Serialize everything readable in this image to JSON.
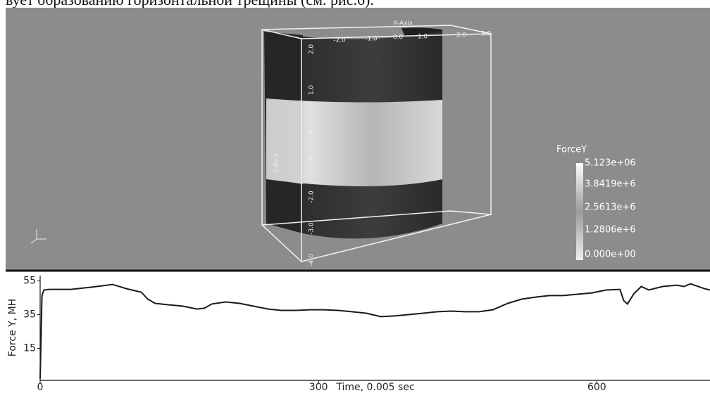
{
  "text": "вует образованию горизонтальной трещины (см. рис.6).",
  "visualization": {
    "x_axis": {
      "title": "X-Axis",
      "ticks": [
        "-2.0",
        "-1.0",
        "0.0",
        "1.0",
        "2.0",
        "3.0"
      ]
    },
    "z_axis": {
      "title": "Z-Axis",
      "ticks": [
        "2.0",
        "1.0",
        "0.0",
        "-1.0",
        "-2.0",
        "-3.0",
        "-4.0"
      ]
    },
    "colorbar": {
      "title": "ForceY",
      "labels": [
        "5.123e+06",
        "3.8419e+6",
        "2.5613e+6",
        "1.2806e+6",
        "0.000e+00"
      ]
    }
  },
  "chart_data": {
    "type": "line",
    "xlabel": "Time, 0.005 sec",
    "ylabel": "Force Y, MH",
    "x": [
      0,
      2,
      4,
      10,
      33,
      55,
      78,
      93,
      109,
      116,
      124,
      139,
      154,
      169,
      177,
      185,
      200,
      215,
      230,
      246,
      260,
      276,
      291,
      306,
      321,
      336,
      352,
      367,
      382,
      397,
      412,
      428,
      443,
      458,
      473,
      488,
      504,
      519,
      534,
      549,
      564,
      579,
      595,
      610,
      625,
      629,
      633,
      640,
      648,
      656,
      671,
      686,
      694,
      701,
      716,
      722
    ],
    "values": [
      -3,
      46.3,
      49.6,
      50,
      50,
      51.3,
      52.9,
      50.4,
      48.3,
      44.2,
      41.7,
      40.8,
      40,
      38.3,
      38.8,
      41.3,
      42.5,
      41.7,
      40,
      38.3,
      37.5,
      37.5,
      37.9,
      37.9,
      37.5,
      36.7,
      35.8,
      33.8,
      34.2,
      35,
      35.8,
      36.7,
      37.1,
      36.7,
      36.7,
      37.9,
      41.7,
      44.2,
      45.4,
      46.3,
      46.3,
      47.1,
      47.9,
      49.6,
      50,
      43.3,
      41.3,
      47.5,
      51.7,
      49.6,
      51.7,
      52.5,
      51.7,
      53.3,
      50.4,
      49.6
    ],
    "color": "#1a1a1a",
    "xlim": [
      0,
      722
    ],
    "ylim": [
      -4,
      59
    ],
    "xticks": [
      0,
      300,
      600
    ],
    "yticks": [
      15,
      35,
      55
    ]
  }
}
